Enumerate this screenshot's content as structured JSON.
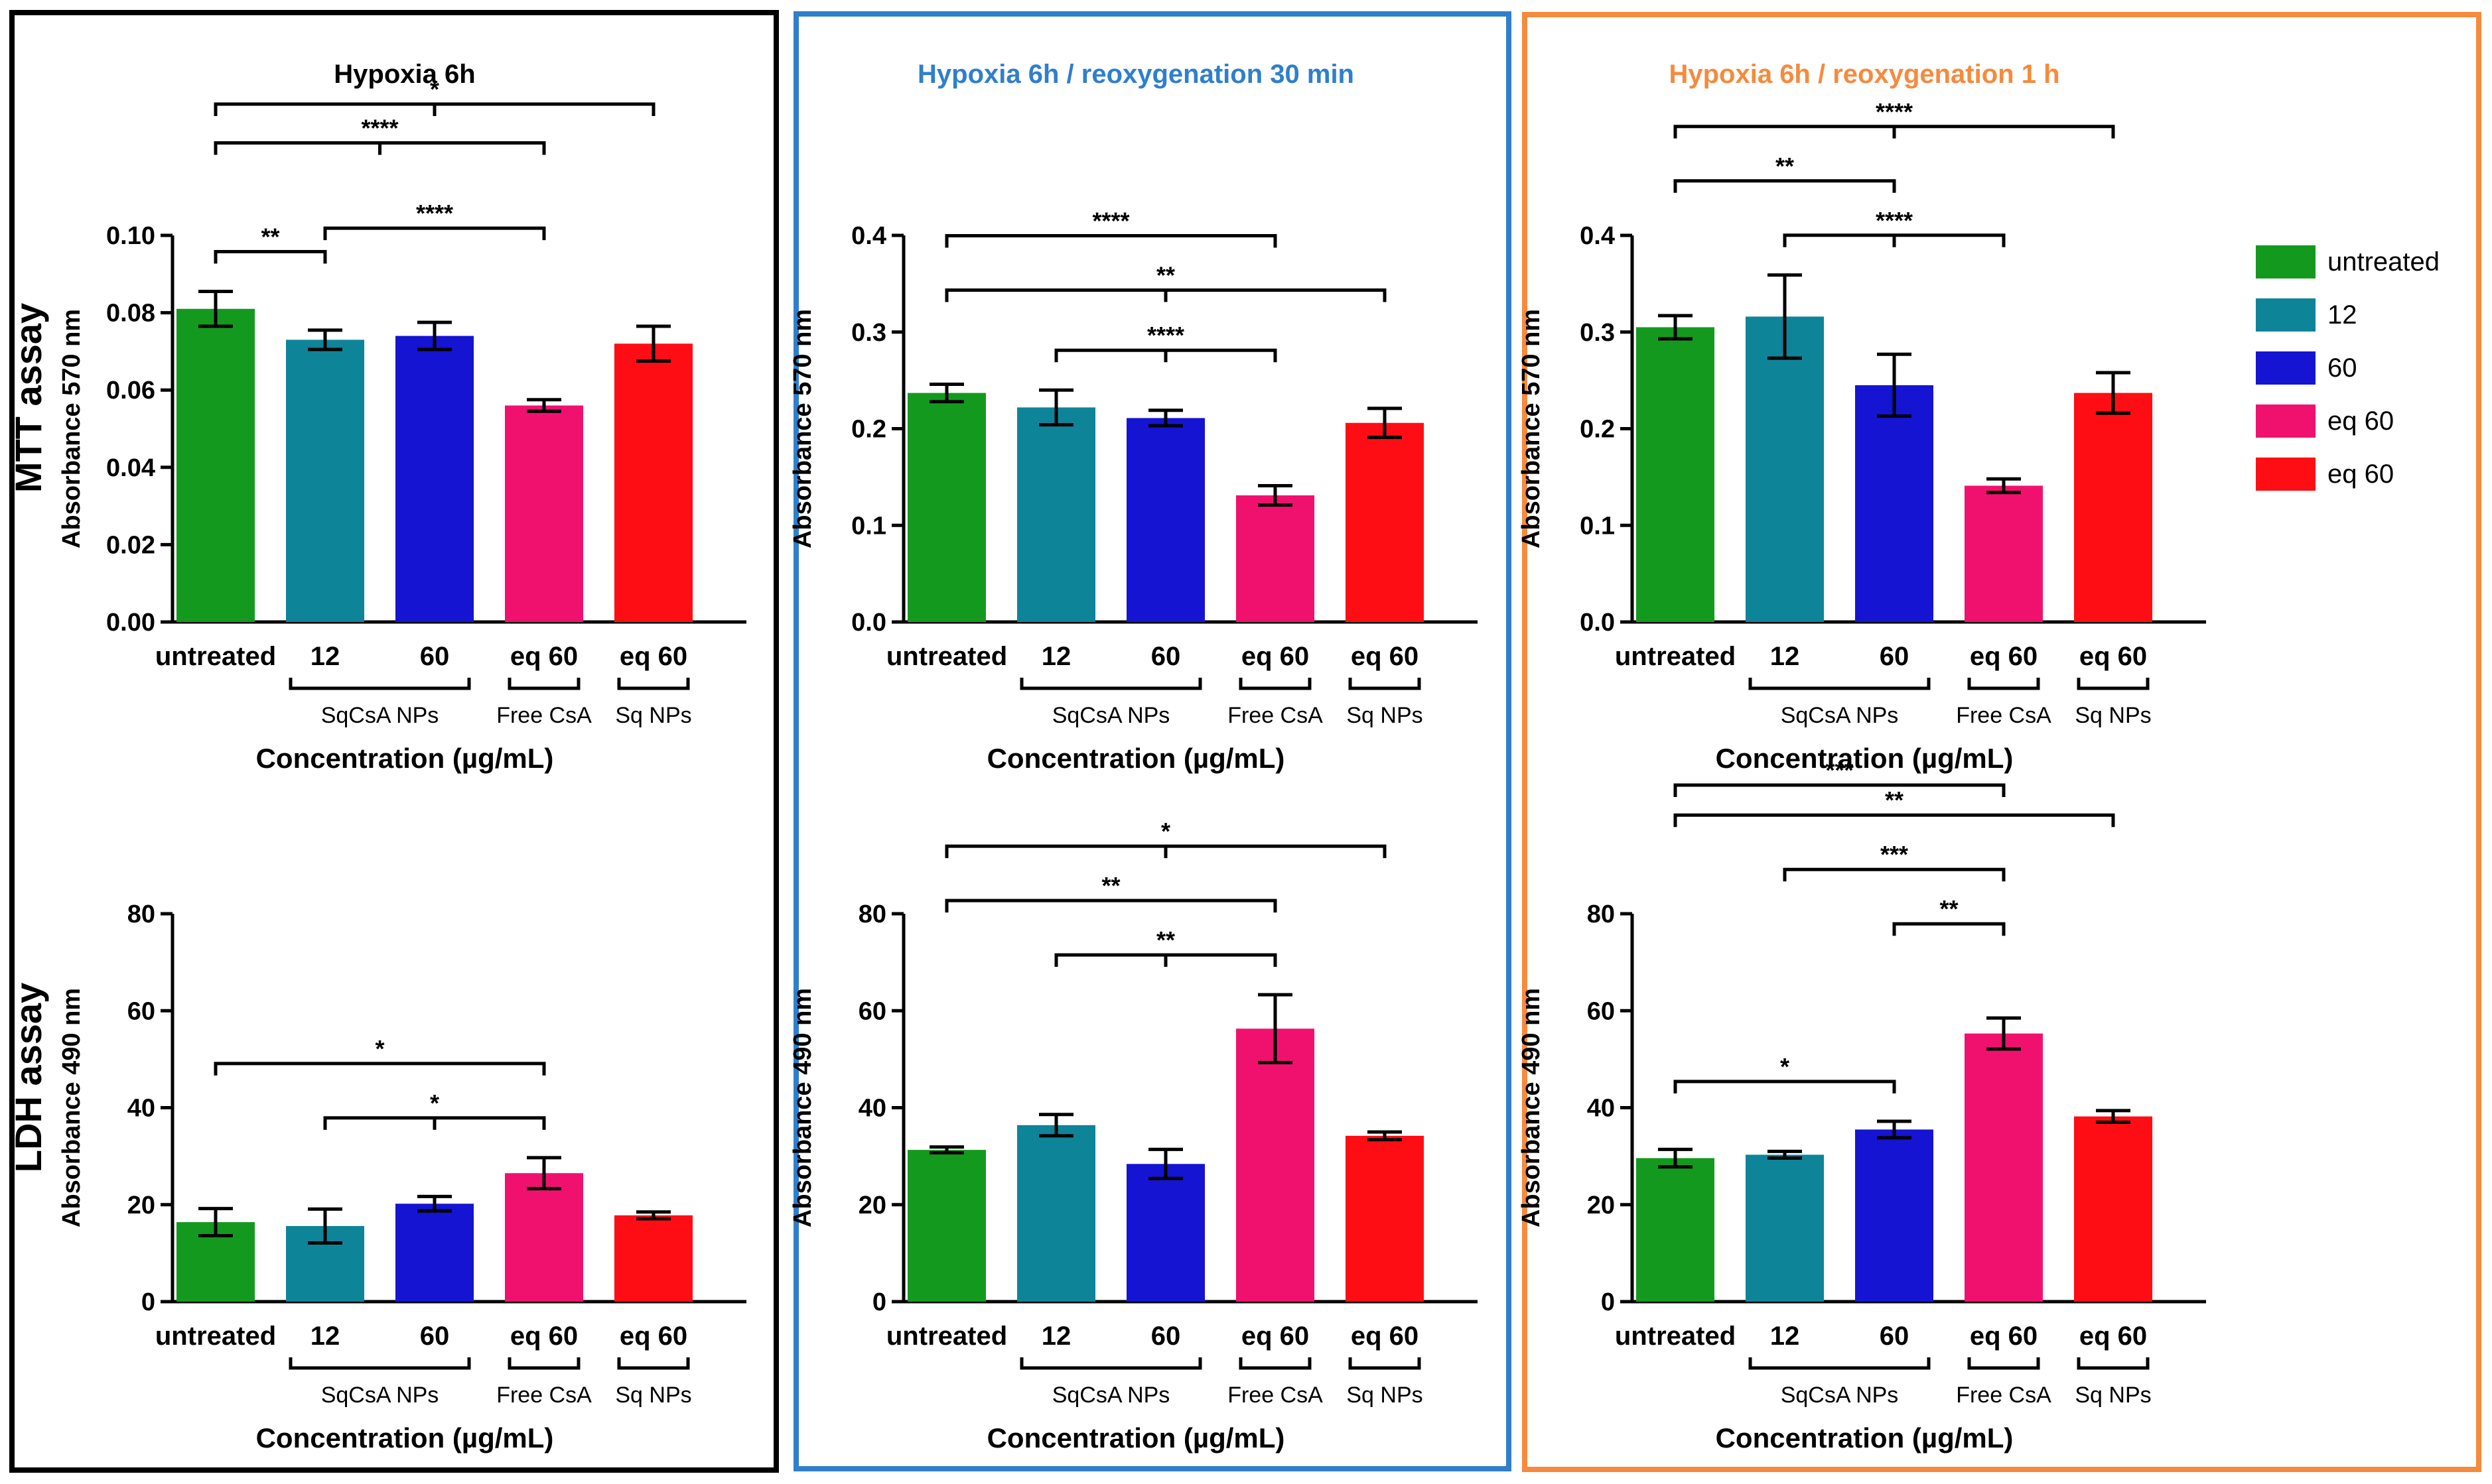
{
  "colors": {
    "untreated": "#139A1E",
    "c12": "#0E8499",
    "c60": "#1414D2",
    "free": "#F0116F",
    "sq": "#FE0E14",
    "frame1": "#000000",
    "frame2": "#2F7FCC",
    "frame3": "#F68A3D"
  },
  "row_labels": [
    "MTT assay",
    "LDH assay"
  ],
  "legend": [
    "untreated",
    "12",
    "60",
    "eq 60",
    "eq 60"
  ],
  "chart_data": [
    {
      "type": "bar",
      "assay": "MTT",
      "panel": 0,
      "title": "Hypoxia 6h",
      "ylabel": "Absorbance 570 nm",
      "xlabel": "Concentration (µg/mL)",
      "categories": [
        "untreated",
        "12",
        "60",
        "eq 60",
        "eq 60"
      ],
      "groups": [
        {
          "label": "SqCsA NPs",
          "from": 1,
          "to": 2
        },
        {
          "label": "Free CsA",
          "from": 3,
          "to": 3
        },
        {
          "label": "Sq NPs",
          "from": 4,
          "to": 4
        }
      ],
      "values": [
        0.081,
        0.073,
        0.074,
        0.056,
        0.072
      ],
      "errors": [
        0.0045,
        0.0025,
        0.0035,
        0.0015,
        0.0045
      ],
      "ylim": [
        0,
        0.1
      ],
      "yticks": [
        "0.00",
        "0.02",
        "0.04",
        "0.06",
        "0.08",
        "0.10"
      ],
      "brackets": [
        {
          "from": 0,
          "to": 1,
          "label": "**",
          "mid": false
        },
        {
          "from": 1,
          "to": 3,
          "label": "****",
          "mid": false
        },
        {
          "from": 0,
          "to": 3,
          "label": "****",
          "mid": true
        },
        {
          "from": 0,
          "to": 4,
          "label": "*",
          "mid": true
        }
      ]
    },
    {
      "type": "bar",
      "assay": "MTT",
      "panel": 1,
      "title": "Hypoxia 6h / reoxygenation 30 min",
      "ylabel": "Absorbance 570 nm",
      "xlabel": "Concentration (µg/mL)",
      "categories": [
        "untreated",
        "12",
        "60",
        "eq 60",
        "eq 60"
      ],
      "groups": [
        {
          "label": "SqCsA NPs",
          "from": 1,
          "to": 2
        },
        {
          "label": "Free CsA",
          "from": 3,
          "to": 3
        },
        {
          "label": "Sq NPs",
          "from": 4,
          "to": 4
        }
      ],
      "values": [
        0.237,
        0.222,
        0.211,
        0.131,
        0.206
      ],
      "errors": [
        0.009,
        0.018,
        0.008,
        0.01,
        0.015
      ],
      "ylim": [
        0,
        0.4
      ],
      "yticks": [
        "0.0",
        "0.1",
        "0.2",
        "0.3",
        "0.4"
      ],
      "brackets": [
        {
          "from": 1,
          "to": 3,
          "label": "****",
          "mid": true
        },
        {
          "from": 0,
          "to": 4,
          "label": "**",
          "mid": true
        },
        {
          "from": 0,
          "to": 3,
          "label": "****",
          "mid": false
        }
      ]
    },
    {
      "type": "bar",
      "assay": "MTT",
      "panel": 2,
      "title": "Hypoxia 6h / reoxygenation 1 h",
      "ylabel": "Absorbance 570 nm",
      "xlabel": "Concentration (µg/mL)",
      "categories": [
        "untreated",
        "12",
        "60",
        "eq 60",
        "eq 60"
      ],
      "groups": [
        {
          "label": "SqCsA NPs",
          "from": 1,
          "to": 2
        },
        {
          "label": "Free CsA",
          "from": 3,
          "to": 3
        },
        {
          "label": "Sq NPs",
          "from": 4,
          "to": 4
        }
      ],
      "values": [
        0.305,
        0.316,
        0.245,
        0.141,
        0.237
      ],
      "errors": [
        0.012,
        0.043,
        0.032,
        0.007,
        0.021
      ],
      "ylim": [
        0,
        0.4
      ],
      "yticks": [
        "0.0",
        "0.1",
        "0.2",
        "0.3",
        "0.4"
      ],
      "brackets": [
        {
          "from": 1,
          "to": 3,
          "label": "****",
          "mid": true
        },
        {
          "from": 0,
          "to": 2,
          "label": "**",
          "mid": false
        },
        {
          "from": 0,
          "to": 4,
          "label": "****",
          "mid": true
        }
      ]
    },
    {
      "type": "bar",
      "assay": "LDH",
      "panel": 0,
      "ylabel": "Absorbance 490 nm",
      "xlabel": "Concentration (µg/mL)",
      "categories": [
        "untreated",
        "12",
        "60",
        "eq 60",
        "eq 60"
      ],
      "groups": [
        {
          "label": "SqCsA NPs",
          "from": 1,
          "to": 2
        },
        {
          "label": "Free CsA",
          "from": 3,
          "to": 3
        },
        {
          "label": "Sq NPs",
          "from": 4,
          "to": 4
        }
      ],
      "values": [
        16.4,
        15.6,
        20.2,
        26.5,
        17.8
      ],
      "errors": [
        2.8,
        3.5,
        1.5,
        3.2,
        0.7
      ],
      "ylim": [
        0,
        80
      ],
      "yticks": [
        "0",
        "20",
        "40",
        "60",
        "80"
      ],
      "brackets": [
        {
          "from": 1,
          "to": 3,
          "label": "*",
          "mid": true
        },
        {
          "from": 0,
          "to": 3,
          "label": "*",
          "mid": false
        }
      ]
    },
    {
      "type": "bar",
      "assay": "LDH",
      "panel": 1,
      "ylabel": "Absorbance 490 nm",
      "xlabel": "Concentration (µg/mL)",
      "categories": [
        "untreated",
        "12",
        "60",
        "eq 60",
        "eq 60"
      ],
      "groups": [
        {
          "label": "SqCsA NPs",
          "from": 1,
          "to": 2
        },
        {
          "label": "Free CsA",
          "from": 3,
          "to": 3
        },
        {
          "label": "Sq NPs",
          "from": 4,
          "to": 4
        }
      ],
      "values": [
        31.3,
        36.4,
        28.4,
        56.3,
        34.2
      ],
      "errors": [
        0.6,
        2.2,
        3.0,
        7.0,
        0.8
      ],
      "ylim": [
        0,
        80
      ],
      "yticks": [
        "0",
        "20",
        "40",
        "60",
        "80"
      ],
      "brackets": [
        {
          "from": 1,
          "to": 3,
          "label": "**",
          "mid": true
        },
        {
          "from": 0,
          "to": 3,
          "label": "**",
          "mid": false
        },
        {
          "from": 0,
          "to": 4,
          "label": "*",
          "mid": true
        }
      ]
    },
    {
      "type": "bar",
      "assay": "LDH",
      "panel": 2,
      "ylabel": "Absorbance 490 nm",
      "xlabel": "Concentration (µg/mL)",
      "categories": [
        "untreated",
        "12",
        "60",
        "eq 60",
        "eq 60"
      ],
      "groups": [
        {
          "label": "SqCsA NPs",
          "from": 1,
          "to": 2
        },
        {
          "label": "Free CsA",
          "from": 3,
          "to": 3
        },
        {
          "label": "Sq NPs",
          "from": 4,
          "to": 4
        }
      ],
      "values": [
        29.6,
        30.3,
        35.5,
        55.3,
        38.2
      ],
      "errors": [
        1.8,
        0.7,
        1.7,
        3.2,
        1.2
      ],
      "ylim": [
        0,
        80
      ],
      "yticks": [
        "0",
        "20",
        "40",
        "60",
        "80"
      ],
      "brackets": [
        {
          "from": 0,
          "to": 2,
          "label": "*",
          "mid": false
        },
        {
          "from": 2,
          "to": 3,
          "label": "**",
          "mid": false
        },
        {
          "from": 1,
          "to": 3,
          "label": "***",
          "mid": false
        },
        {
          "from": 0,
          "to": 4,
          "label": "**",
          "mid": false
        },
        {
          "from": 0,
          "to": 3,
          "label": "***",
          "mid": false
        }
      ]
    }
  ]
}
